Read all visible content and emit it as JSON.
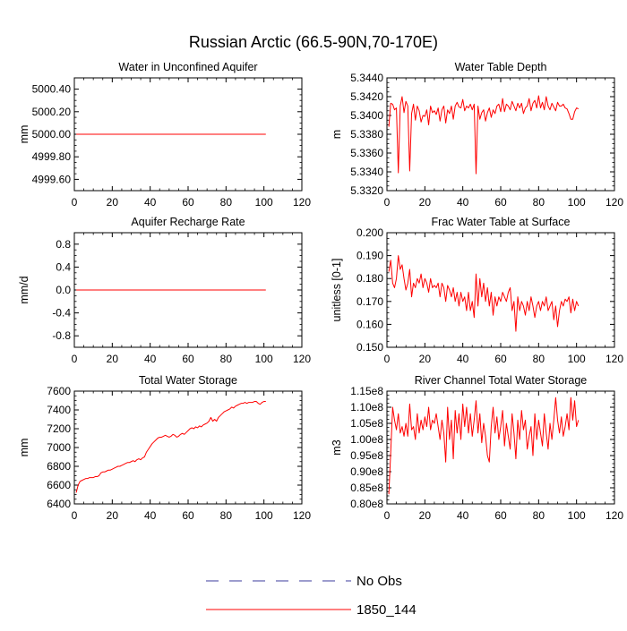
{
  "figure_title": "Russian Arctic (66.5-90N,70-170E)",
  "legend": [
    {
      "label": "No Obs",
      "color": "#3b3b9e",
      "dash": true
    },
    {
      "label": "1850_144",
      "color": "#ff0000",
      "dash": false
    }
  ],
  "chart_data": [
    {
      "type": "line",
      "title": "Water in Unconfined Aquifer",
      "xlabel": "",
      "ylabel": "mm",
      "xlim": [
        0,
        120
      ],
      "ylim": [
        4999.5,
        5000.5
      ],
      "x_ticks": [
        "0",
        "20",
        "40",
        "60",
        "80",
        "100",
        "120"
      ],
      "y_ticks": [
        {
          "v": 4999.6,
          "label": "4999.60"
        },
        {
          "v": 4999.8,
          "label": "4999.80"
        },
        {
          "v": 5000.0,
          "label": "5000.00"
        },
        {
          "v": 5000.2,
          "label": "5000.20"
        },
        {
          "v": 5000.4,
          "label": "5000.40"
        }
      ],
      "x": [
        1,
        101
      ],
      "series": [
        {
          "name": "1850_144",
          "color": "#ff0000",
          "values": [
            5000.0,
            5000.0
          ]
        }
      ]
    },
    {
      "type": "line",
      "title": "Water Table Depth",
      "xlabel": "",
      "ylabel": "m",
      "xlim": [
        0,
        120
      ],
      "ylim": [
        5.332,
        5.344
      ],
      "x_ticks": [
        "0",
        "20",
        "40",
        "60",
        "80",
        "100",
        "120"
      ],
      "y_ticks": [
        {
          "v": 5.332,
          "label": "5.3320"
        },
        {
          "v": 5.334,
          "label": "5.3340"
        },
        {
          "v": 5.336,
          "label": "5.3360"
        },
        {
          "v": 5.338,
          "label": "5.3380"
        },
        {
          "v": 5.34,
          "label": "5.3400"
        },
        {
          "v": 5.342,
          "label": "5.3420"
        },
        {
          "v": 5.344,
          "label": "5.3440"
        }
      ],
      "x_start": 1,
      "series": [
        {
          "name": "1850_144",
          "color": "#ff0000",
          "values": [
            5.3388,
            5.3413,
            5.3412,
            5.3406,
            5.3408,
            5.3339,
            5.341,
            5.342,
            5.3403,
            5.3415,
            5.341,
            5.3341,
            5.3402,
            5.3412,
            5.3395,
            5.341,
            5.3405,
            5.3393,
            5.34,
            5.3399,
            5.3406,
            5.339,
            5.341,
            5.3403,
            5.3405,
            5.3401,
            5.3408,
            5.3394,
            5.3406,
            5.341,
            5.3392,
            5.3406,
            5.3402,
            5.341,
            5.3396,
            5.341,
            5.3414,
            5.3409,
            5.3408,
            5.3417,
            5.3405,
            5.341,
            5.3408,
            5.3412,
            5.3406,
            5.3412,
            5.3338,
            5.341,
            5.3396,
            5.3403,
            5.3406,
            5.3394,
            5.3403,
            5.3408,
            5.3398,
            5.3406,
            5.3402,
            5.341,
            5.3412,
            5.3404,
            5.3418,
            5.3404,
            5.3412,
            5.341,
            5.3406,
            5.3415,
            5.341,
            5.3405,
            5.3413,
            5.3408,
            5.3413,
            5.3402,
            5.3408,
            5.341,
            5.3418,
            5.3405,
            5.3413,
            5.3416,
            5.3408,
            5.3421,
            5.3408,
            5.3414,
            5.3406,
            5.342,
            5.341,
            5.3406,
            5.3413,
            5.3409,
            5.3405,
            5.3414,
            5.341,
            5.341,
            5.3412,
            5.3408,
            5.3407,
            5.3402,
            5.3396,
            5.3396,
            5.3404,
            5.3408,
            5.3407
          ]
        }
      ]
    },
    {
      "type": "line",
      "title": "Aquifer Recharge Rate",
      "xlabel": "",
      "ylabel": "mm/d",
      "xlim": [
        0,
        120
      ],
      "ylim": [
        -1.0,
        1.0
      ],
      "x_ticks": [
        "0",
        "20",
        "40",
        "60",
        "80",
        "100",
        "120"
      ],
      "y_ticks": [
        {
          "v": -0.8,
          "label": "-0.8"
        },
        {
          "v": -0.4,
          "label": "-0.4"
        },
        {
          "v": 0.0,
          "label": "0.0"
        },
        {
          "v": 0.4,
          "label": "0.4"
        },
        {
          "v": 0.8,
          "label": "0.8"
        }
      ],
      "x": [
        1,
        101
      ],
      "series": [
        {
          "name": "1850_144",
          "color": "#ff0000",
          "values": [
            0.0,
            0.0
          ]
        }
      ]
    },
    {
      "type": "line",
      "title": "Frac Water Table at Surface",
      "xlabel": "",
      "ylabel": "unitless [0-1]",
      "xlim": [
        0,
        120
      ],
      "ylim": [
        0.15,
        0.2
      ],
      "x_ticks": [
        "0",
        "20",
        "40",
        "60",
        "80",
        "100",
        "120"
      ],
      "y_ticks": [
        {
          "v": 0.15,
          "label": "0.150"
        },
        {
          "v": 0.16,
          "label": "0.160"
        },
        {
          "v": 0.17,
          "label": "0.170"
        },
        {
          "v": 0.18,
          "label": "0.180"
        },
        {
          "v": 0.19,
          "label": "0.190"
        },
        {
          "v": 0.2,
          "label": "0.200"
        }
      ],
      "x_start": 1,
      "series": [
        {
          "name": "1850_144",
          "color": "#ff0000",
          "values": [
            0.183,
            0.188,
            0.178,
            0.176,
            0.18,
            0.19,
            0.184,
            0.186,
            0.18,
            0.175,
            0.178,
            0.184,
            0.172,
            0.178,
            0.176,
            0.18,
            0.178,
            0.182,
            0.176,
            0.18,
            0.178,
            0.174,
            0.18,
            0.176,
            0.177,
            0.176,
            0.178,
            0.172,
            0.178,
            0.176,
            0.17,
            0.177,
            0.175,
            0.172,
            0.176,
            0.17,
            0.174,
            0.168,
            0.174,
            0.17,
            0.172,
            0.166,
            0.174,
            0.166,
            0.17,
            0.163,
            0.182,
            0.168,
            0.18,
            0.172,
            0.178,
            0.17,
            0.176,
            0.168,
            0.174,
            0.164,
            0.172,
            0.168,
            0.172,
            0.17,
            0.174,
            0.172,
            0.17,
            0.174,
            0.176,
            0.166,
            0.17,
            0.157,
            0.172,
            0.166,
            0.17,
            0.168,
            0.164,
            0.17,
            0.166,
            0.172,
            0.168,
            0.163,
            0.168,
            0.17,
            0.166,
            0.17,
            0.168,
            0.172,
            0.166,
            0.168,
            0.17,
            0.162,
            0.168,
            0.159,
            0.166,
            0.17,
            0.168,
            0.171,
            0.17,
            0.172,
            0.165,
            0.171,
            0.166,
            0.17,
            0.168
          ]
        }
      ]
    },
    {
      "type": "line",
      "title": "Total Water Storage",
      "xlabel": "",
      "ylabel": "mm",
      "xlim": [
        0,
        120
      ],
      "ylim": [
        6400,
        7600
      ],
      "x_ticks": [
        "0",
        "20",
        "40",
        "60",
        "80",
        "100",
        "120"
      ],
      "y_ticks": [
        {
          "v": 6400,
          "label": "6400"
        },
        {
          "v": 6600,
          "label": "6600"
        },
        {
          "v": 6800,
          "label": "6800"
        },
        {
          "v": 7000,
          "label": "7000"
        },
        {
          "v": 7200,
          "label": "7200"
        },
        {
          "v": 7400,
          "label": "7400"
        },
        {
          "v": 7600,
          "label": "7600"
        }
      ],
      "x_start": 1,
      "series": [
        {
          "name": "1850_144",
          "color": "#ff0000",
          "values": [
            6520,
            6600,
            6640,
            6650,
            6660,
            6670,
            6670,
            6680,
            6680,
            6680,
            6690,
            6690,
            6700,
            6730,
            6740,
            6740,
            6750,
            6760,
            6760,
            6770,
            6780,
            6790,
            6800,
            6800,
            6810,
            6820,
            6830,
            6840,
            6840,
            6850,
            6860,
            6850,
            6870,
            6880,
            6870,
            6890,
            6900,
            6950,
            6980,
            7010,
            7040,
            7060,
            7080,
            7100,
            7110,
            7110,
            7120,
            7130,
            7120,
            7110,
            7120,
            7140,
            7130,
            7110,
            7120,
            7140,
            7150,
            7140,
            7160,
            7180,
            7200,
            7210,
            7200,
            7220,
            7210,
            7230,
            7220,
            7240,
            7250,
            7260,
            7280,
            7320,
            7280,
            7300,
            7280,
            7320,
            7340,
            7360,
            7380,
            7390,
            7400,
            7410,
            7430,
            7420,
            7440,
            7450,
            7460,
            7470,
            7470,
            7480,
            7470,
            7480,
            7480,
            7480,
            7490,
            7490,
            7470,
            7460,
            7480,
            7490,
            7490
          ]
        }
      ]
    },
    {
      "type": "line",
      "title": "River Channel Total Water Storage",
      "xlabel": "",
      "ylabel": "m3",
      "xlim": [
        0,
        120
      ],
      "ylim": [
        80000000.0,
        115000000.0
      ],
      "x_ticks": [
        "0",
        "20",
        "40",
        "60",
        "80",
        "100",
        "120"
      ],
      "y_ticks": [
        {
          "v": 80000000.0,
          "label": "0.80e8"
        },
        {
          "v": 85000000.0,
          "label": "0.85e8"
        },
        {
          "v": 90000000.0,
          "label": "0.90e8"
        },
        {
          "v": 95000000.0,
          "label": "0.95e8"
        },
        {
          "v": 100000000.0,
          "label": "1.00e8"
        },
        {
          "v": 105000000.0,
          "label": "1.05e8"
        },
        {
          "v": 110000000.0,
          "label": "1.10e8"
        },
        {
          "v": 115000000.0,
          "label": "1.15e8"
        }
      ],
      "x_start": 1,
      "series": [
        {
          "name": "1850_144",
          "color": "#ff0000",
          "values": [
            83000000.0,
            96000000.0,
            110000000.0,
            106000000.0,
            103000000.0,
            108000000.0,
            102000000.0,
            104000000.0,
            101000000.0,
            105000000.0,
            101000000.0,
            111000000.0,
            103000000.0,
            104000000.0,
            100000000.0,
            108000000.0,
            102000000.0,
            106000000.0,
            103000000.0,
            107000000.0,
            104000000.0,
            110000000.0,
            103000000.0,
            106000000.0,
            105000000.0,
            108000000.0,
            104000000.0,
            100000000.0,
            106000000.0,
            102000000.0,
            93000000.0,
            110000000.0,
            100000000.0,
            106000000.0,
            94000000.0,
            109000000.0,
            102000000.0,
            108000000.0,
            100000000.0,
            111000000.0,
            104000000.0,
            110000000.0,
            102000000.0,
            108000000.0,
            101000000.0,
            106000000.0,
            112000000.0,
            102000000.0,
            108000000.0,
            99000000.0,
            105000000.0,
            101000000.0,
            95000000.0,
            93000000.0,
            104000000.0,
            110000000.0,
            102000000.0,
            107000000.0,
            100000000.0,
            104000000.0,
            109000000.0,
            98000000.0,
            105000000.0,
            101000000.0,
            97000000.0,
            108000000.0,
            102000000.0,
            94000000.0,
            106000000.0,
            100000000.0,
            109000000.0,
            103000000.0,
            106000000.0,
            97000000.0,
            101000000.0,
            104000000.0,
            95000000.0,
            108000000.0,
            100000000.0,
            106000000.0,
            102000000.0,
            98000000.0,
            108000000.0,
            102000000.0,
            97000000.0,
            105000000.0,
            100000000.0,
            106000000.0,
            113000000.0,
            106000000.0,
            102000000.0,
            107000000.0,
            101000000.0,
            104000000.0,
            108000000.0,
            103000000.0,
            113000000.0,
            106000000.0,
            112000000.0,
            104000000.0,
            106000000.0
          ]
        }
      ]
    }
  ]
}
